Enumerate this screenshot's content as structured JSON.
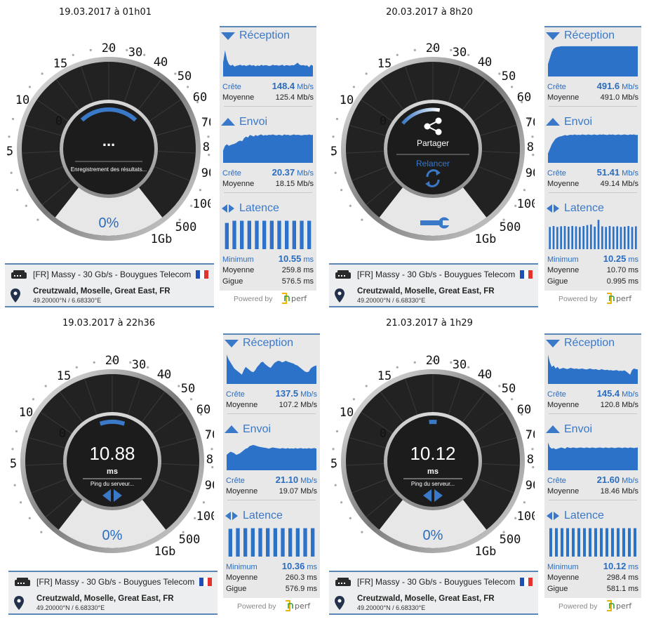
{
  "colors": {
    "accent": "#3a78c8",
    "bar": "#2c72c9",
    "gauge_dark": "#222222",
    "zero_area": "#e7e7e7",
    "flag_blue": "#1f4fb5",
    "flag_white": "#ffffff",
    "flag_red": "#e3332e"
  },
  "labels": {
    "download": "Réception",
    "upload": "Envoi",
    "latency": "Latence",
    "peak": "Crête",
    "average": "Moyenne",
    "minimum": "Minimum",
    "jitter": "Gigue",
    "unit_speed": "Mb/s",
    "unit_ms": "ms",
    "powered": "Powered by"
  },
  "gauge_scale": [
    "0",
    "5",
    "10",
    "15",
    "20",
    "30",
    "40",
    "50",
    "60",
    "70",
    "80",
    "90",
    "100",
    "500",
    "1Gb"
  ],
  "server": {
    "name": "[FR] Massy - 30 Gb/s - Bouygues Telecom",
    "flag": "fr-flag-icon"
  },
  "location": {
    "city": "Creutzwald, Moselle, Great East, FR",
    "coords": "49.20000°N / 6.68330°E"
  },
  "tests": [
    {
      "title": "19.03.2017 à 01h01",
      "gauge": {
        "mode": "saving",
        "main": "...",
        "sub": "Enregistrement des résultats...",
        "zero": "0%",
        "arc_progress": 0.8
      },
      "download": {
        "peak": "148.4",
        "avg": "125.4 Mb/s",
        "spark": [
          0.45,
          0.85,
          0.55,
          0.4,
          0.35,
          0.38,
          0.32,
          0.35,
          0.36,
          0.38,
          0.35,
          0.37,
          0.34,
          0.36,
          0.38,
          0.35,
          0.37,
          0.33,
          0.36,
          0.34,
          0.38,
          0.35,
          0.37,
          0.36,
          0.34,
          0.35,
          0.38,
          0.36,
          0.37,
          0.35,
          0.36,
          0.38,
          0.34,
          0.37,
          0.36,
          0.35,
          0.37,
          0.36,
          0.4,
          0.45,
          0.38,
          0.36,
          0.37,
          0.35,
          0.36,
          0.3,
          0.38,
          0.35
        ]
      },
      "upload": {
        "peak": "20.37",
        "avg": "18.15 Mb/s",
        "spark": [
          0.4,
          0.55,
          0.6,
          0.55,
          0.58,
          0.6,
          0.62,
          0.65,
          0.7,
          0.72,
          0.7,
          0.8,
          0.85,
          0.82,
          0.9,
          0.88,
          0.85,
          0.9,
          0.87,
          0.9,
          0.92,
          0.88,
          0.9,
          0.89,
          0.91,
          0.9,
          0.92,
          0.9,
          0.89,
          0.91,
          0.9,
          0.88,
          0.92,
          0.9,
          0.91,
          0.89,
          0.9,
          0.92,
          0.9,
          0.91,
          0.9,
          0.89,
          0.9,
          0.91,
          0.9,
          0.92,
          0.9,
          0.91
        ]
      },
      "latency": {
        "min": "10.55",
        "avg": "259.8 ms",
        "jitter": "576.5 ms",
        "bars": [
          0.85,
          0.92,
          0.92,
          0.92,
          0.92,
          0.92,
          0.92,
          0.92,
          0.92,
          0.92,
          0.92,
          0.92
        ]
      }
    },
    {
      "title": "20.03.2017 à 8h20",
      "gauge": {
        "mode": "share",
        "main": "Partager",
        "sub": "Relancer",
        "zero": "",
        "arc_progress": 0.35
      },
      "download": {
        "peak": "491.6",
        "avg": "491.0 Mb/s",
        "spark": [
          0.4,
          0.6,
          0.8,
          0.9,
          0.94,
          0.96,
          0.97,
          0.98,
          0.98,
          0.98,
          0.98,
          0.98,
          0.98,
          0.98,
          0.98,
          0.98,
          0.98,
          0.98,
          0.98,
          0.98,
          0.98,
          0.98,
          0.98,
          0.98,
          0.98,
          0.98,
          0.98,
          0.98,
          0.98,
          0.98,
          0.98,
          0.98,
          0.98,
          0.98,
          0.98,
          0.98,
          0.98,
          0.98,
          0.98,
          0.98,
          0.98,
          0.98,
          0.98,
          0.98,
          0.98,
          0.98,
          0.98,
          0.98
        ]
      },
      "upload": {
        "peak": "51.41",
        "avg": "49.14 Mb/s",
        "spark": [
          0.3,
          0.45,
          0.6,
          0.7,
          0.78,
          0.82,
          0.85,
          0.86,
          0.88,
          0.9,
          0.88,
          0.9,
          0.91,
          0.9,
          0.92,
          0.9,
          0.91,
          0.9,
          0.92,
          0.91,
          0.9,
          0.92,
          0.91,
          0.9,
          0.92,
          0.91,
          0.9,
          0.92,
          0.91,
          0.92,
          0.91,
          0.9,
          0.92,
          0.91,
          0.92,
          0.9,
          0.91,
          0.92,
          0.9,
          0.91,
          0.92,
          0.91,
          0.9,
          0.92,
          0.91,
          0.92,
          0.9,
          0.91
        ]
      },
      "latency": {
        "min": "10.25",
        "avg": "10.70 ms",
        "jitter": "0.995 ms",
        "bars": [
          0.72,
          0.75,
          0.72,
          0.74,
          0.75,
          0.73,
          0.75,
          0.74,
          0.72,
          0.75,
          0.78,
          0.8,
          0.73,
          0.95,
          0.74,
          0.72,
          0.75,
          0.73,
          0.74,
          0.72,
          0.73,
          0.75,
          0.72,
          0.74
        ]
      }
    },
    {
      "title": "19.03.2017 à 22h36",
      "gauge": {
        "mode": "ping",
        "main": "10.88",
        "unit": "ms",
        "sub": "Ping du serveur...",
        "zero": "0%",
        "arc_progress": 0.3
      },
      "download": {
        "peak": "137.5",
        "avg": "107.2 Mb/s",
        "spark": [
          0.95,
          0.8,
          0.7,
          0.6,
          0.5,
          0.45,
          0.4,
          0.35,
          0.3,
          0.45,
          0.55,
          0.5,
          0.45,
          0.4,
          0.38,
          0.45,
          0.55,
          0.62,
          0.7,
          0.72,
          0.65,
          0.6,
          0.55,
          0.52,
          0.6,
          0.68,
          0.72,
          0.75,
          0.74,
          0.7,
          0.72,
          0.75,
          0.72,
          0.7,
          0.68,
          0.66,
          0.62,
          0.6,
          0.55,
          0.5,
          0.45,
          0.4,
          0.38,
          0.4,
          0.5,
          0.55,
          0.58,
          0.6
        ]
      },
      "upload": {
        "peak": "21.10",
        "avg": "19.07 Mb/s",
        "spark": [
          0.5,
          0.55,
          0.6,
          0.58,
          0.55,
          0.5,
          0.52,
          0.55,
          0.6,
          0.65,
          0.7,
          0.72,
          0.78,
          0.8,
          0.82,
          0.8,
          0.78,
          0.76,
          0.75,
          0.74,
          0.73,
          0.72,
          0.7,
          0.72,
          0.74,
          0.73,
          0.72,
          0.71,
          0.7,
          0.72,
          0.71,
          0.7,
          0.72,
          0.7,
          0.71,
          0.7,
          0.72,
          0.7,
          0.71,
          0.72,
          0.7,
          0.71,
          0.7,
          0.72,
          0.7,
          0.71,
          0.72,
          0.7
        ]
      },
      "latency": {
        "min": "10.36",
        "avg": "260.3 ms",
        "jitter": "576.9 ms",
        "bars": [
          0.9,
          0.92,
          0.92,
          0.92,
          0.92,
          0.92,
          0.92,
          0.92,
          0.92,
          0.92,
          0.92,
          0.92
        ]
      }
    },
    {
      "title": "21.03.2017 à 1h29",
      "gauge": {
        "mode": "ping",
        "main": "10.12",
        "unit": "ms",
        "sub": "Ping du serveur...",
        "zero": "0%",
        "arc_progress": 0.05
      },
      "download": {
        "peak": "145.4",
        "avg": "120.8 Mb/s",
        "spark": [
          0.95,
          0.7,
          0.55,
          0.6,
          0.5,
          0.55,
          0.48,
          0.5,
          0.52,
          0.5,
          0.48,
          0.5,
          0.52,
          0.5,
          0.49,
          0.5,
          0.48,
          0.49,
          0.5,
          0.48,
          0.47,
          0.48,
          0.5,
          0.48,
          0.47,
          0.48,
          0.46,
          0.45,
          0.48,
          0.46,
          0.45,
          0.46,
          0.44,
          0.45,
          0.43,
          0.44,
          0.45,
          0.42,
          0.43,
          0.42,
          0.44,
          0.4,
          0.35,
          0.3,
          0.45,
          0.5,
          0.48,
          0.47
        ]
      },
      "upload": {
        "peak": "21.60",
        "avg": "18.46 Mb/s",
        "spark": [
          0.9,
          0.75,
          0.7,
          0.72,
          0.68,
          0.7,
          0.72,
          0.74,
          0.72,
          0.7,
          0.75,
          0.73,
          0.72,
          0.74,
          0.73,
          0.72,
          0.73,
          0.74,
          0.73,
          0.72,
          0.74,
          0.73,
          0.72,
          0.74,
          0.73,
          0.72,
          0.73,
          0.74,
          0.73,
          0.72,
          0.74,
          0.73,
          0.72,
          0.74,
          0.73,
          0.72,
          0.73,
          0.74,
          0.73,
          0.72,
          0.74,
          0.73,
          0.72,
          0.74,
          0.73,
          0.72,
          0.73,
          0.74
        ]
      },
      "latency": {
        "min": "10.12",
        "avg": "298.4 ms",
        "jitter": "581.1 ms",
        "bars": [
          0.92,
          0.92,
          0.92,
          0.92,
          0.92,
          0.92,
          0.92,
          0.92,
          0.92,
          0.92,
          0.92,
          0.92,
          0.92,
          0.92,
          0.92,
          0.92
        ]
      }
    }
  ]
}
